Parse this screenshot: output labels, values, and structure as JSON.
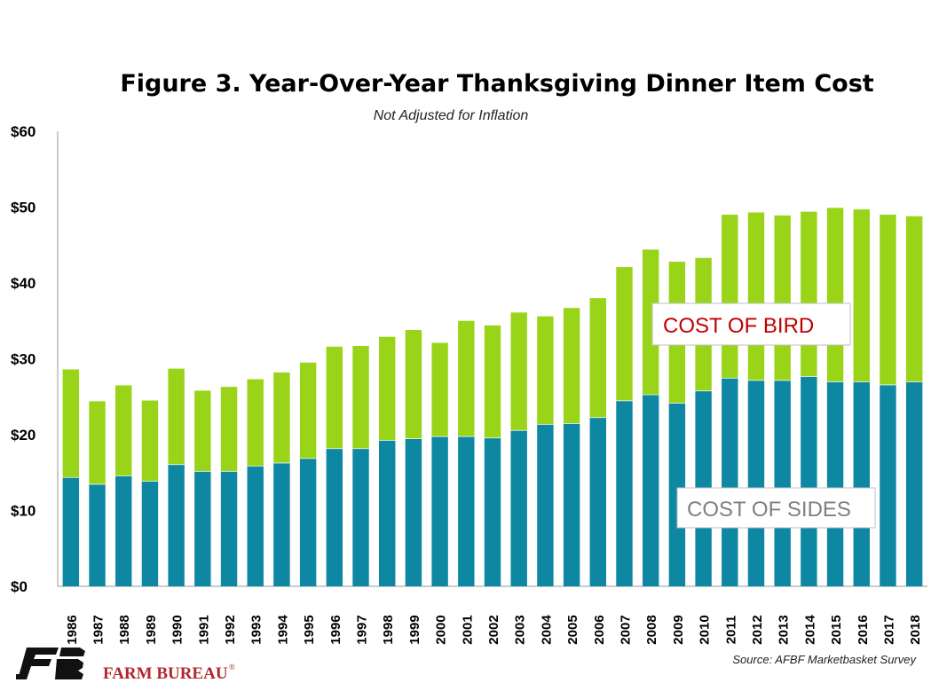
{
  "chart_data": {
    "type": "bar",
    "stacked": true,
    "title": "Figure 3. Year-Over-Year Thanksgiving Dinner Item Cost",
    "subtitle": "Not Adjusted for Inflation",
    "xlabel": "",
    "ylabel": "",
    "ylim": [
      0,
      60
    ],
    "yticks": [
      "$0",
      "$10",
      "$20",
      "$30",
      "$40",
      "$50",
      "$60"
    ],
    "categories": [
      "1986",
      "1987",
      "1988",
      "1989",
      "1990",
      "1991",
      "1992",
      "1993",
      "1994",
      "1995",
      "1996",
      "1997",
      "1998",
      "1999",
      "2000",
      "2001",
      "2002",
      "2003",
      "2004",
      "2005",
      "2006",
      "2007",
      "2008",
      "2009",
      "2010",
      "2011",
      "2012",
      "2013",
      "2014",
      "2015",
      "2016",
      "2017",
      "2018"
    ],
    "series": [
      {
        "name": "COST OF SIDES",
        "color": "#0e87a3",
        "values": [
          14.4,
          13.5,
          14.6,
          13.9,
          16.1,
          15.2,
          15.2,
          15.9,
          16.3,
          16.9,
          18.2,
          18.2,
          19.3,
          19.5,
          19.8,
          19.8,
          19.6,
          20.6,
          21.4,
          21.5,
          22.3,
          24.5,
          25.3,
          24.2,
          25.8,
          27.5,
          27.2,
          27.2,
          27.7,
          27.0,
          27.0,
          26.6,
          27.0
        ]
      },
      {
        "name": "COST OF BIRD",
        "color": "#99d418",
        "values": [
          14.2,
          10.9,
          11.9,
          10.6,
          12.6,
          10.6,
          11.1,
          11.4,
          11.9,
          12.6,
          13.4,
          13.5,
          13.6,
          14.3,
          12.3,
          15.2,
          14.8,
          15.5,
          14.2,
          15.2,
          15.7,
          17.6,
          19.1,
          18.6,
          17.5,
          21.5,
          22.1,
          21.7,
          21.7,
          22.9,
          22.7,
          22.4,
          21.8
        ]
      }
    ],
    "annotations": {
      "bird_label": "COST OF BIRD",
      "bird_color": "#c00000",
      "sides_label": "COST OF SIDES",
      "sides_color": "#808080"
    },
    "grid": false,
    "legend": "none"
  },
  "source": "Source: AFBF Marketbasket Survey",
  "logo": {
    "text": "FARM BUREAU",
    "mark": "®",
    "color": "#b0272d",
    "icon": "farm-bureau-fb-logo"
  }
}
